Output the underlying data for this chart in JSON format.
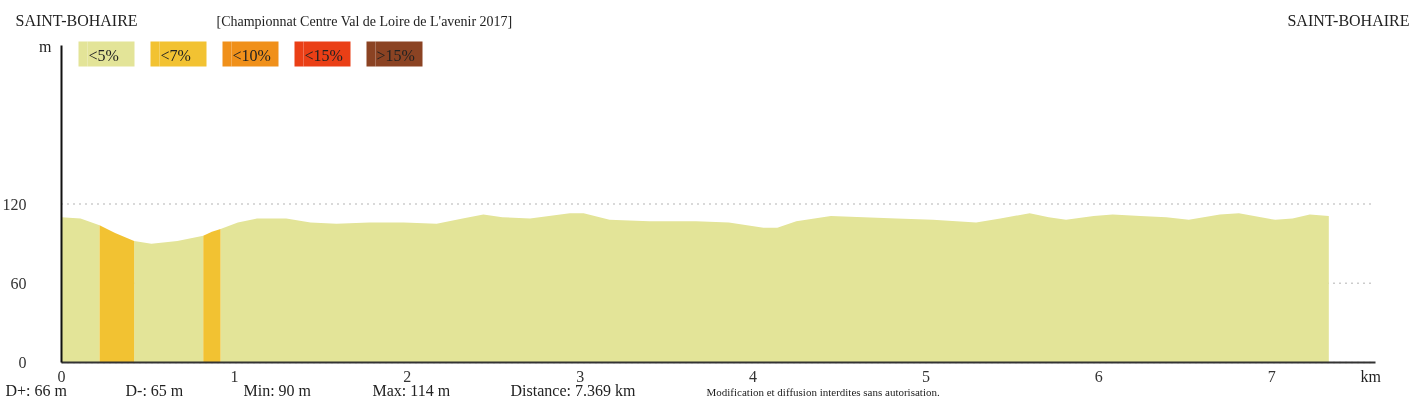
{
  "chart_data": {
    "type": "area",
    "title": "[Championnat Centre Val de Loire de L'avenir 2017]",
    "xlabel": "km",
    "ylabel": "m",
    "annotations": [
      "SAINT-BOHAIRE",
      "SAINT-BOHAIRE",
      "D+: 66 m",
      "D-: 65 m",
      "Min: 90 m",
      "Max: 114 m",
      "Distance: 7.369 km",
      "Modification et diffusion interdites sans autorisation."
    ],
    "x": [
      0,
      0.11,
      0.22,
      0.31,
      0.42,
      0.52,
      0.67,
      0.82,
      0.87,
      0.92,
      1.02,
      1.13,
      1.3,
      1.44,
      1.59,
      1.78,
      1.98,
      2.17,
      2.32,
      2.44,
      2.55,
      2.71,
      2.94,
      3.02,
      3.17,
      3.4,
      3.67,
      3.86,
      4.06,
      4.14,
      4.25,
      4.45,
      4.64,
      4.83,
      5.04,
      5.29,
      5.43,
      5.6,
      5.71,
      5.81,
      5.97,
      6.08,
      6.24,
      6.39,
      6.52,
      6.7,
      6.81,
      7.02,
      7.12,
      7.22,
      7.33
    ],
    "series": [
      {
        "name": "<5%",
        "color": "#e3e498",
        "values": [
          110,
          109,
          104,
          null,
          92,
          90,
          92,
          96,
          null,
          101,
          106,
          109,
          109,
          106,
          105,
          106,
          106,
          105,
          109,
          112,
          110,
          109,
          113,
          113,
          108,
          107,
          107,
          106,
          102,
          102,
          107,
          111,
          110,
          109,
          108,
          106,
          109,
          113,
          110,
          108,
          111,
          112,
          111,
          110,
          108,
          112,
          113,
          108,
          109,
          112,
          111
        ]
      },
      {
        "name": "<7%",
        "color": "#f2c232",
        "values": [
          null,
          null,
          104,
          98,
          92,
          null,
          null,
          96,
          99,
          101,
          null,
          null,
          null,
          null,
          null,
          null,
          null,
          null,
          null,
          null,
          null,
          null,
          null,
          null,
          null,
          null,
          null,
          null,
          null,
          null,
          null,
          null,
          null,
          null,
          null,
          null,
          null,
          null,
          null,
          null,
          null,
          null,
          null,
          null,
          null,
          null,
          null,
          null,
          null,
          null,
          null
        ]
      },
      {
        "name": "<10%",
        "color": "#f0901a",
        "values": [
          null,
          null,
          null,
          null,
          null,
          null,
          null,
          null,
          null,
          null,
          null,
          null,
          null,
          null,
          null,
          null,
          null,
          null,
          null,
          null,
          null,
          null,
          null,
          null,
          null,
          null,
          null,
          null,
          null,
          null,
          null,
          null,
          null,
          null,
          null,
          null,
          null,
          null,
          null,
          null,
          null,
          null,
          null,
          null,
          null,
          null,
          null,
          null,
          null,
          null,
          null
        ]
      },
      {
        "name": "<15%",
        "color": "#ea3f16",
        "values": [
          null,
          null,
          null,
          null,
          null,
          null,
          null,
          null,
          null,
          null,
          null,
          null,
          null,
          null,
          null,
          null,
          null,
          null,
          null,
          null,
          null,
          null,
          null,
          null,
          null,
          null,
          null,
          null,
          null,
          null,
          null,
          null,
          null,
          null,
          null,
          null,
          null,
          null,
          null,
          null,
          null,
          null,
          null,
          null,
          null,
          null,
          null,
          null,
          null,
          null,
          null
        ]
      },
      {
        "name": ">15%",
        "color": "#8b4323",
        "values": [
          null,
          null,
          null,
          null,
          null,
          null,
          null,
          null,
          null,
          null,
          null,
          null,
          null,
          null,
          null,
          null,
          null,
          null,
          null,
          null,
          null,
          null,
          null,
          null,
          null,
          null,
          null,
          null,
          null,
          null,
          null,
          null,
          null,
          null,
          null,
          null,
          null,
          null,
          null,
          null,
          null,
          null,
          null,
          null,
          null,
          null,
          null,
          null,
          null,
          null,
          null
        ]
      }
    ],
    "xlim": [
      0,
      7.6
    ],
    "ylim": [
      0,
      240
    ],
    "xticks": [
      0,
      1,
      2,
      3,
      4,
      5,
      6,
      7
    ],
    "yticks": [
      0,
      60,
      120
    ],
    "grid": "y",
    "legend": "top left"
  }
}
